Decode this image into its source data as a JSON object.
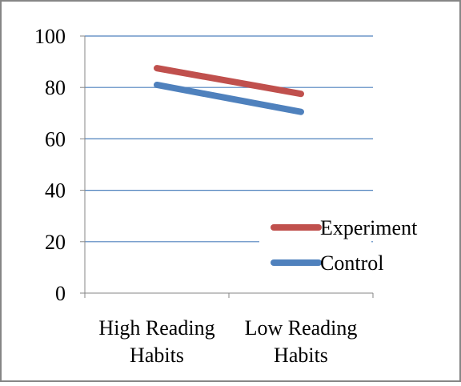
{
  "chart_data": {
    "type": "line",
    "title": "",
    "xlabel": "",
    "ylabel": "",
    "categories": [
      "High Reading Habits",
      "Low Reading Habits"
    ],
    "category_lines": [
      [
        "High Reading",
        "Habits"
      ],
      [
        "Low Reading",
        "Habits"
      ]
    ],
    "ylim": [
      0,
      100
    ],
    "yticks": [
      0,
      20,
      40,
      60,
      80,
      100
    ],
    "grid": true,
    "legend_position": "lower-right",
    "series": [
      {
        "name": "Experiment",
        "values": [
          87.5,
          77.5
        ],
        "color": "#c0504d"
      },
      {
        "name": "Control",
        "values": [
          81,
          70.5
        ],
        "color": "#4f81bd"
      }
    ],
    "colors": {
      "gridline": "#4f81bd",
      "axis": "#868686",
      "frame": "#868686"
    }
  }
}
